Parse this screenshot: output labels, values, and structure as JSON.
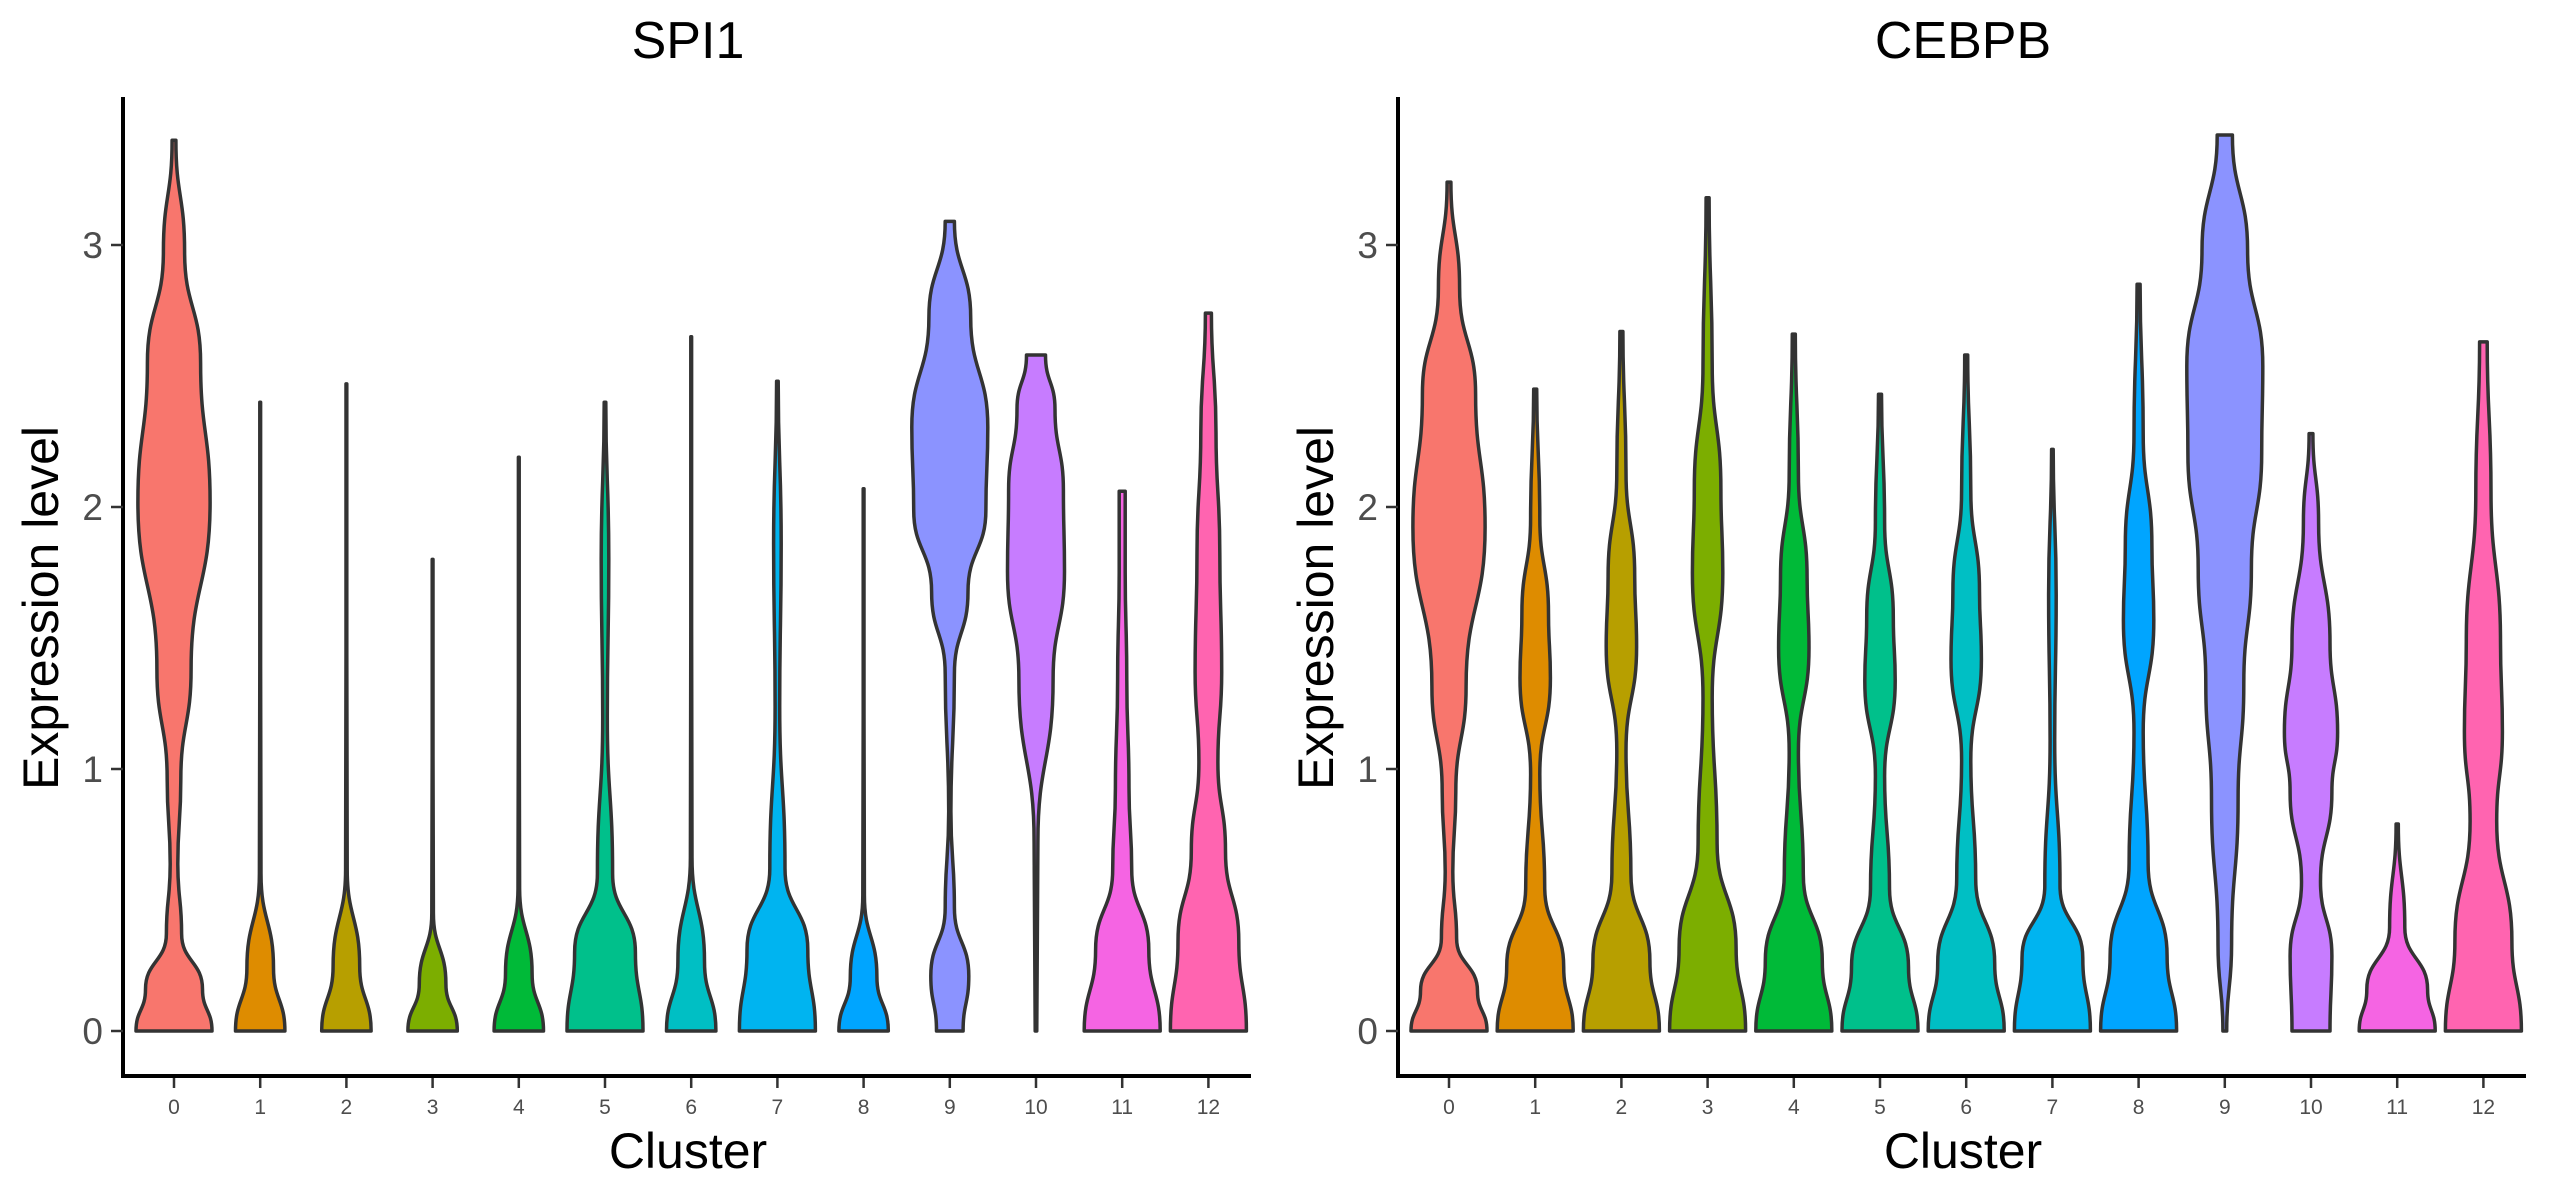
{
  "chart_data": [
    {
      "type": "violin",
      "title": "SPI1",
      "xlabel": "Cluster",
      "ylabel": "Expression level",
      "ylim": [
        -0.17,
        3.57
      ],
      "yticks": [
        0,
        1,
        2,
        3
      ],
      "grid": false,
      "legend": "none",
      "categories": [
        "0",
        "1",
        "2",
        "3",
        "4",
        "5",
        "6",
        "7",
        "8",
        "9",
        "10",
        "11",
        "12"
      ],
      "max_values": [
        3.4,
        2.4,
        2.47,
        1.8,
        2.19,
        2.4,
        2.65,
        2.48,
        2.07,
        3.09,
        2.58,
        2.06,
        2.74
      ],
      "colors": [
        "#F8766D",
        "#DE8C00",
        "#B79F00",
        "#7CAE00",
        "#00BA38",
        "#00C08B",
        "#00BFC4",
        "#00B4F0",
        "#00A5FF",
        "#8B93FF",
        "#C77CFF",
        "#F564E3",
        "#FF64B0"
      ]
    },
    {
      "type": "violin",
      "title": "CEBPB",
      "xlabel": "Cluster",
      "ylabel": "Expression level",
      "ylim": [
        -0.17,
        3.57
      ],
      "yticks": [
        0,
        1,
        2,
        3
      ],
      "grid": false,
      "legend": "none",
      "categories": [
        "0",
        "1",
        "2",
        "3",
        "4",
        "5",
        "6",
        "7",
        "8",
        "9",
        "10",
        "11",
        "12"
      ],
      "max_values": [
        3.24,
        2.45,
        2.67,
        3.18,
        2.66,
        2.43,
        2.58,
        2.22,
        2.85,
        3.42,
        2.28,
        0.79,
        2.63
      ],
      "colors": [
        "#F8766D",
        "#DE8C00",
        "#B79F00",
        "#7CAE00",
        "#00BA38",
        "#00C08B",
        "#00BFC4",
        "#00B4F0",
        "#00A5FF",
        "#8B93FF",
        "#C77CFF",
        "#F564E3",
        "#FF64B0"
      ]
    }
  ]
}
